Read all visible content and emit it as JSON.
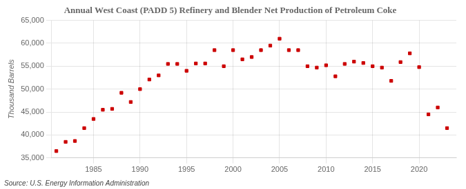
{
  "chart_data": {
    "type": "scatter",
    "title": "Annual West Coast (PADD 5) Refinery and Blender Net Production of Petroleum Coke",
    "ylabel": "Thousand Barrels",
    "source": "Source: U.S. Energy Information Administration",
    "x": [
      1981,
      1982,
      1983,
      1984,
      1985,
      1986,
      1987,
      1988,
      1989,
      1990,
      1991,
      1992,
      1993,
      1994,
      1995,
      1996,
      1997,
      1998,
      1999,
      2000,
      2001,
      2002,
      2003,
      2004,
      2005,
      2006,
      2007,
      2008,
      2009,
      2010,
      2011,
      2012,
      2013,
      2014,
      2015,
      2016,
      2017,
      2018,
      2019,
      2020,
      2021,
      2022,
      2023
    ],
    "values": [
      36500,
      38500,
      38700,
      41500,
      43500,
      45500,
      45700,
      49200,
      47200,
      50000,
      52100,
      53000,
      55500,
      55500,
      54000,
      55600,
      55600,
      58500,
      55000,
      58500,
      56500,
      57000,
      58500,
      59500,
      61000,
      58500,
      58500,
      55000,
      54700,
      55200,
      52800,
      55500,
      56000,
      55700,
      55000,
      54700,
      51800,
      55900,
      57800,
      54800,
      44500,
      46000,
      41500
    ],
    "color": "#cc0000",
    "marker": "square",
    "xlim": [
      1980.5,
      2024
    ],
    "ylim": [
      35000,
      65000
    ],
    "xticks": [
      1985,
      1990,
      1995,
      2000,
      2005,
      2010,
      2015,
      2020
    ],
    "yticks": [
      {
        "value": 35000,
        "label": "35,000"
      },
      {
        "value": 40000,
        "label": "40,000"
      },
      {
        "value": 45000,
        "label": "45,000"
      },
      {
        "value": 50000,
        "label": "50,000"
      },
      {
        "value": 55000,
        "label": "55,000"
      },
      {
        "value": 60000,
        "label": "60,000"
      },
      {
        "value": 65000,
        "label": "65,000"
      }
    ],
    "grid": true
  }
}
